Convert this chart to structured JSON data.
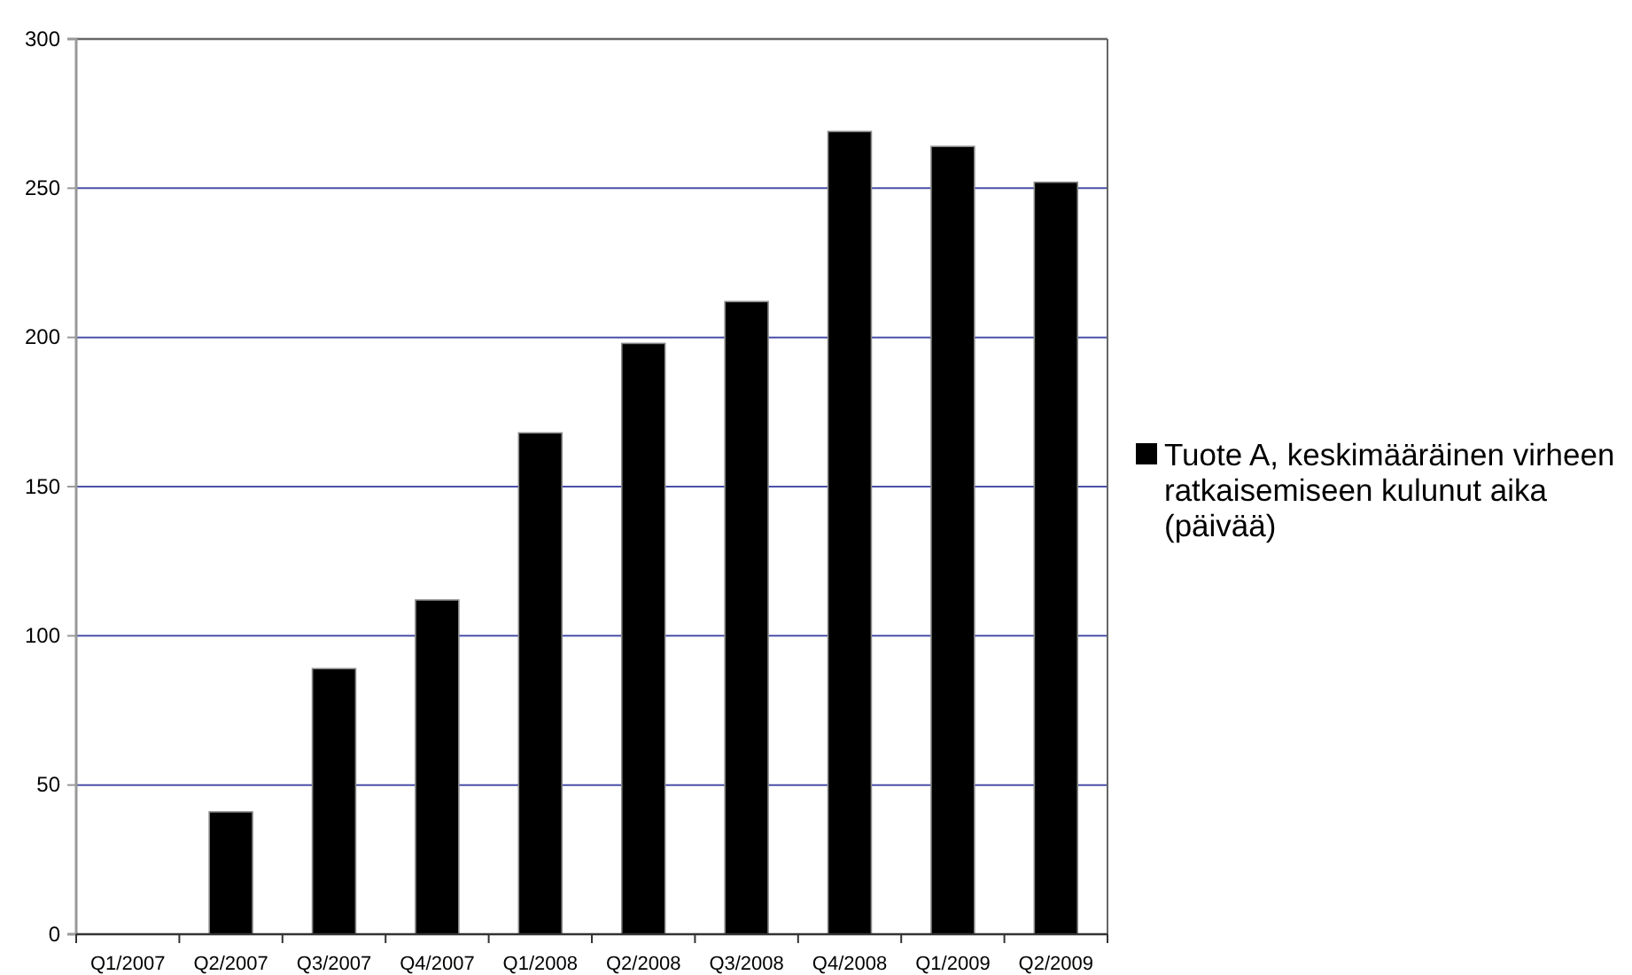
{
  "chart_data": {
    "type": "bar",
    "categories": [
      "Q1/2007",
      "Q2/2007",
      "Q3/2007",
      "Q4/2007",
      "Q1/2008",
      "Q2/2008",
      "Q3/2008",
      "Q4/2008",
      "Q1/2009",
      "Q2/2009"
    ],
    "series": [
      {
        "name": "Tuote A, keskimääräinen virheen ratkaisemiseen kulunut aika (päivää)",
        "color": "#000000",
        "values": [
          null,
          41,
          89,
          112,
          168,
          198,
          212,
          269,
          264,
          252
        ]
      }
    ],
    "ylim": [
      0,
      300
    ],
    "yticks": [
      0,
      50,
      100,
      150,
      200,
      250,
      300
    ],
    "grid": "y",
    "legend": "right"
  }
}
